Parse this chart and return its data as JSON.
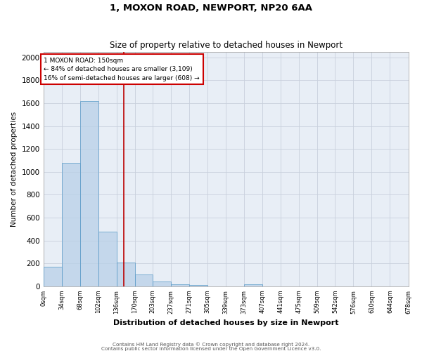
{
  "title_line1": "1, MOXON ROAD, NEWPORT, NP20 6AA",
  "title_line2": "Size of property relative to detached houses in Newport",
  "xlabel": "Distribution of detached houses by size in Newport",
  "ylabel": "Number of detached properties",
  "bin_labels": [
    "0sqm",
    "34sqm",
    "68sqm",
    "102sqm",
    "136sqm",
    "170sqm",
    "203sqm",
    "237sqm",
    "271sqm",
    "305sqm",
    "339sqm",
    "373sqm",
    "407sqm",
    "441sqm",
    "475sqm",
    "509sqm",
    "542sqm",
    "576sqm",
    "610sqm",
    "644sqm",
    "678sqm"
  ],
  "bar_values": [
    170,
    1080,
    1620,
    480,
    205,
    105,
    40,
    20,
    10,
    0,
    0,
    20,
    0,
    0,
    0,
    0,
    0,
    0,
    0,
    0
  ],
  "bin_edges": [
    0,
    34,
    68,
    102,
    136,
    170,
    203,
    237,
    271,
    305,
    339,
    373,
    407,
    441,
    475,
    509,
    542,
    576,
    610,
    644,
    678
  ],
  "property_size": 150,
  "red_line_x": 150,
  "ylim": [
    0,
    2050
  ],
  "yticks": [
    0,
    200,
    400,
    600,
    800,
    1000,
    1200,
    1400,
    1600,
    1800,
    2000
  ],
  "bar_facecolor": "#b8d0e8",
  "bar_edgecolor": "#5a9bc8",
  "bar_alpha": 0.75,
  "grid_color": "#c8d0dc",
  "bg_color": "#e8eef6",
  "annotation_text": "1 MOXON ROAD: 150sqm\n← 84% of detached houses are smaller (3,109)\n16% of semi-detached houses are larger (608) →",
  "annotation_box_edgecolor": "#cc0000",
  "red_line_color": "#bb0000",
  "footnote1": "Contains HM Land Registry data © Crown copyright and database right 2024.",
  "footnote2": "Contains public sector information licensed under the Open Government Licence v3.0."
}
